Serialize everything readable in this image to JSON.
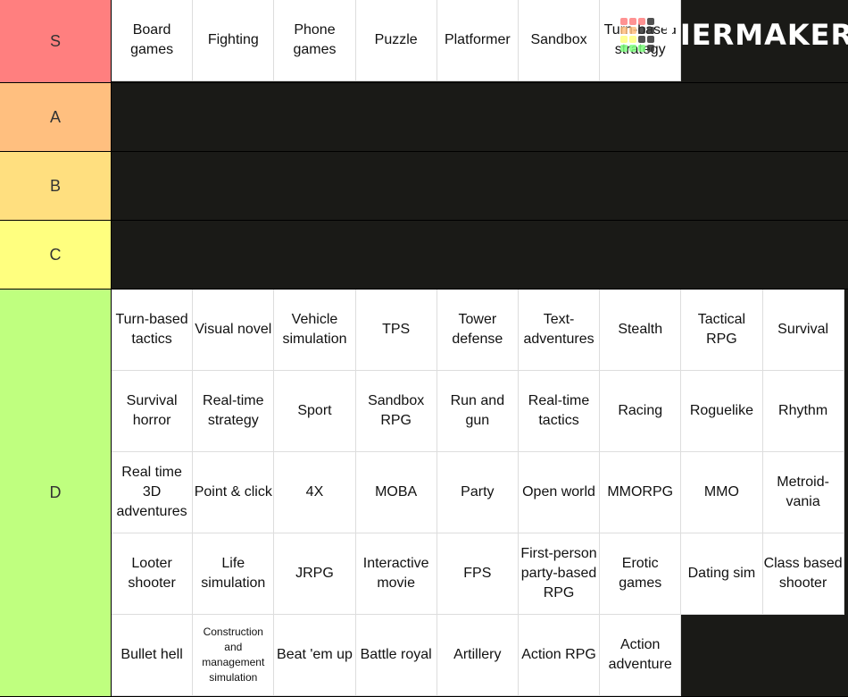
{
  "logo": "TIERMAKER",
  "tiers": [
    {
      "label": "S",
      "color": "#ff7f7f",
      "items": [
        "Board games",
        "Fighting",
        "Phone games",
        "Puzzle",
        "Platformer",
        "Sandbox",
        "Turn-based strategy"
      ]
    },
    {
      "label": "A",
      "color": "#ffbf7f",
      "items": []
    },
    {
      "label": "B",
      "color": "#ffdf7f",
      "items": []
    },
    {
      "label": "C",
      "color": "#ffff7f",
      "items": []
    },
    {
      "label": "D",
      "color": "#bfff7f",
      "items": [
        "Turn-based tactics",
        "Visual novel",
        "Vehicle simulation",
        "TPS",
        "Tower defense",
        "Text-adventures",
        "Stealth",
        "Tactical RPG",
        "Survival",
        "Survival horror",
        "Real-time strategy",
        "Sport",
        "Sandbox RPG",
        "Run and gun",
        "Real-time tactics",
        "Racing",
        "Roguelike",
        "Rhythm",
        "Real time 3D adventures",
        "Point & click",
        "4X",
        "MOBA",
        "Party",
        "Open world",
        "MMORPG",
        "MMO",
        "Metroid-vania",
        "Looter shooter",
        "Life simulation",
        "JRPG",
        "Interactive movie",
        "FPS",
        "First-person party-based RPG",
        "Erotic games",
        "Dating sim",
        "Class based shooter",
        "Bullet hell",
        "Construction and management simulation",
        "Beat 'em up",
        "Battle royal",
        "Artillery",
        "Action RPG",
        "Action adventure"
      ]
    }
  ]
}
